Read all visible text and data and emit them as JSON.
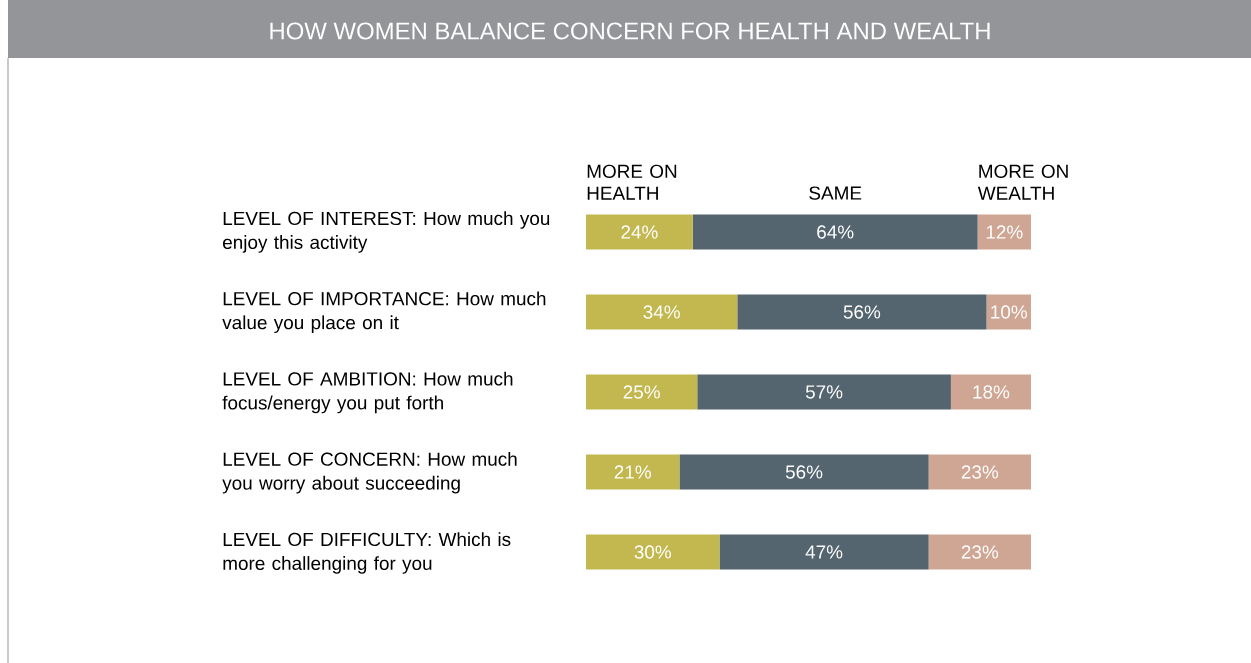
{
  "chart_data": {
    "type": "bar",
    "orientation": "horizontal",
    "stacked": true,
    "title": "HOW WOMEN BALANCE CONCERN FOR HEALTH AND WEALTH",
    "categories": [
      "LEVEL OF INTEREST: How much you enjoy this activity",
      "LEVEL OF IMPORTANCE: How much value you place on it",
      "LEVEL OF AMBITION: How much focus/energy you put forth",
      "LEVEL OF CONCERN: How much you worry about succeeding",
      "LEVEL OF DIFFICULTY: Which is more challenging for you"
    ],
    "series": [
      {
        "name": "MORE ON HEALTH",
        "color": "#c3b74f",
        "values": [
          24,
          34,
          25,
          21,
          30
        ],
        "value_labels": [
          "24%",
          "34%",
          "25%",
          "21%",
          "30%"
        ]
      },
      {
        "name": "SAME",
        "color": "#54656f",
        "values": [
          64,
          56,
          57,
          56,
          47
        ],
        "value_labels": [
          "64%",
          "56%",
          "57%",
          "56%",
          "47%"
        ]
      },
      {
        "name": "MORE ON WEALTH",
        "color": "#cfa693",
        "values": [
          12,
          10,
          18,
          23,
          23
        ],
        "value_labels": [
          "12%",
          "10%",
          "18%",
          "23%",
          "23%"
        ]
      }
    ],
    "xlim": [
      0,
      100
    ],
    "legend": "top"
  }
}
